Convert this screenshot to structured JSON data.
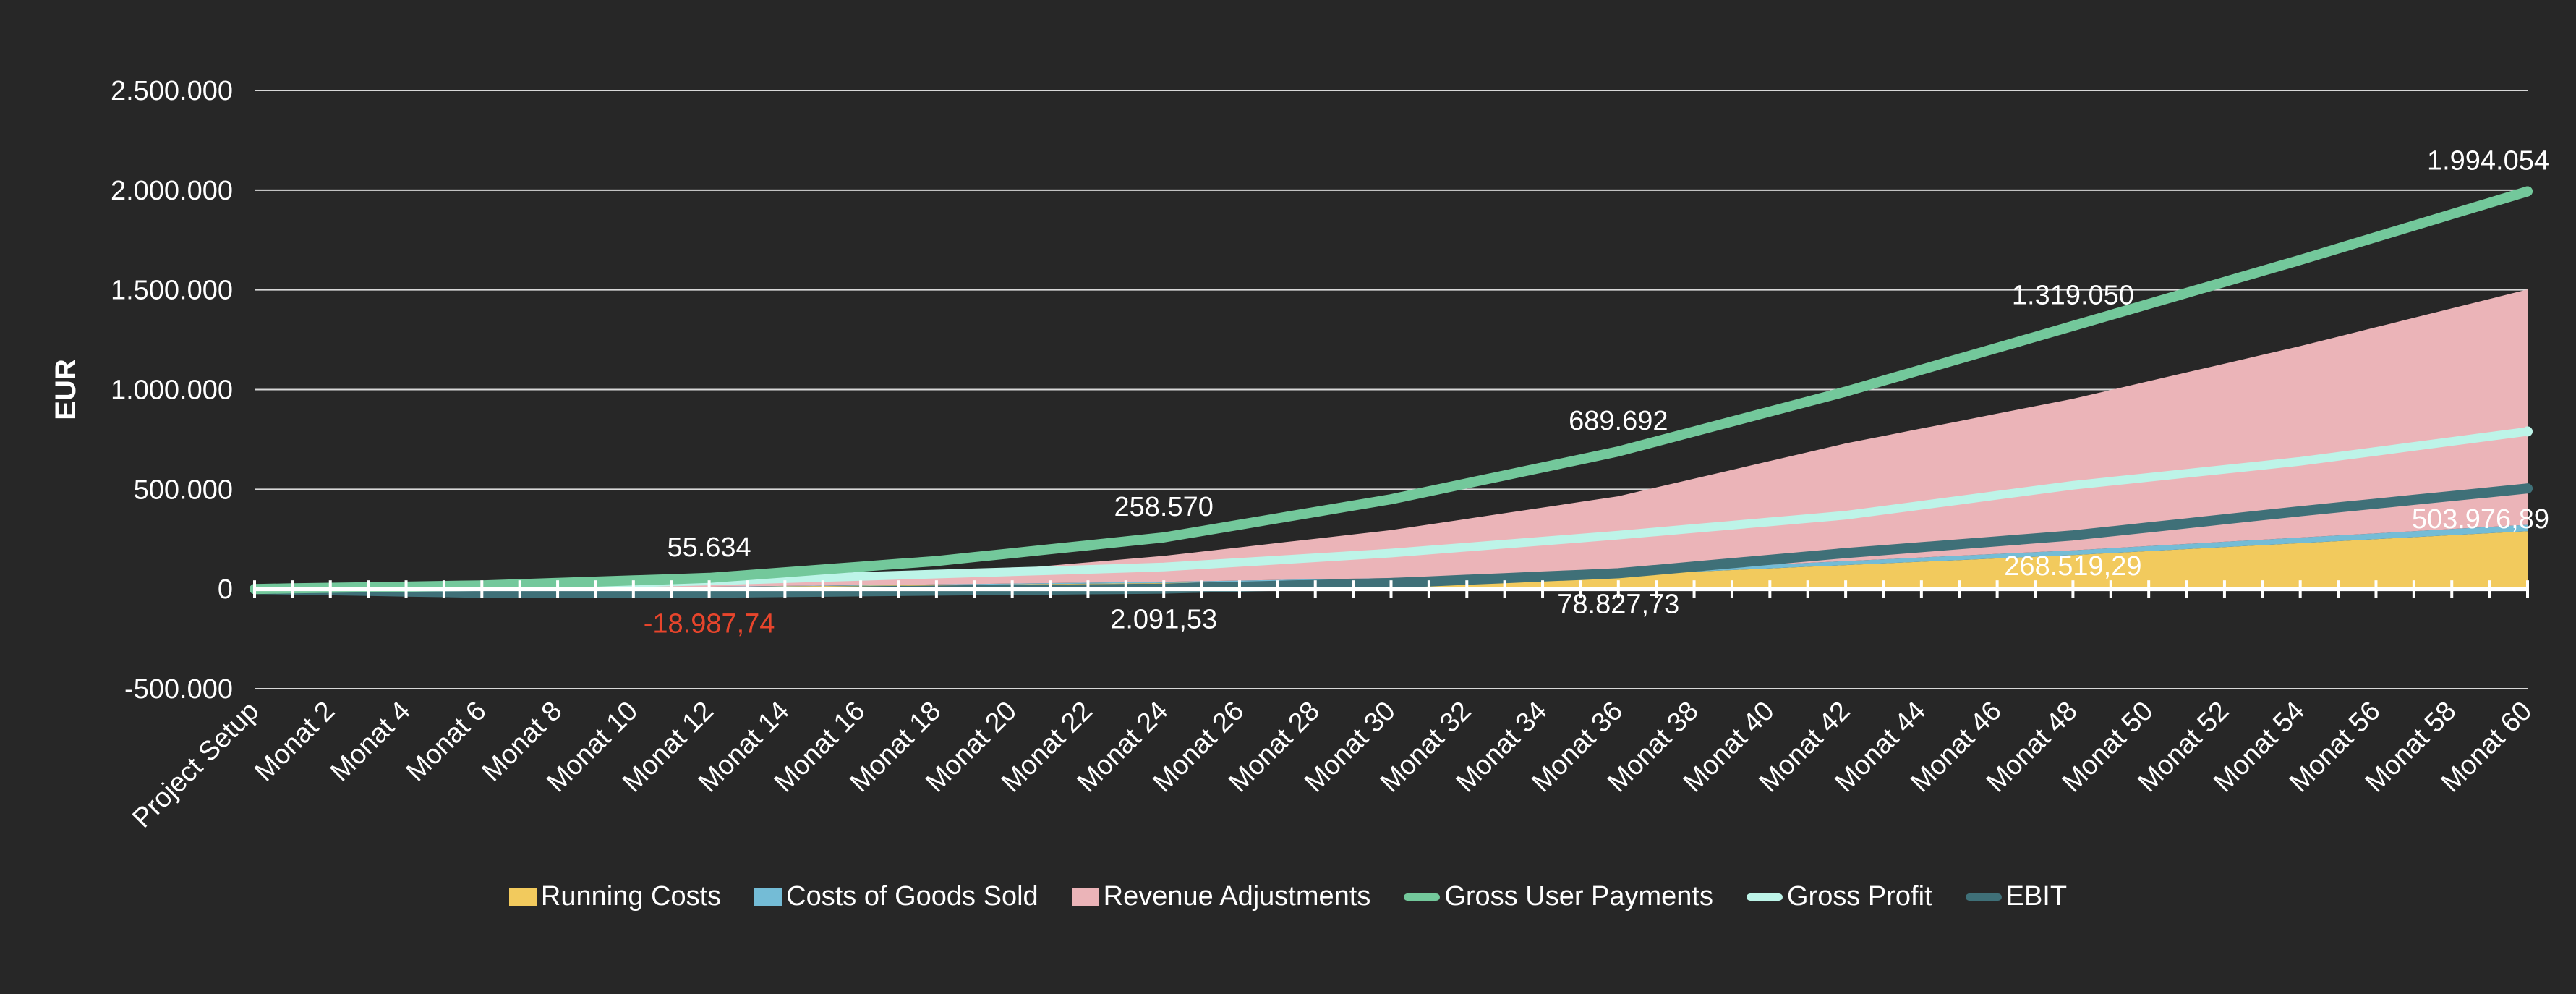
{
  "chart_data": {
    "type": "area",
    "ylabel": "EUR",
    "xlabel": "",
    "ylim": [
      -500000,
      2500000
    ],
    "y_ticks": [
      -500000,
      0,
      500000,
      1000000,
      1500000,
      2000000,
      2500000
    ],
    "y_tick_labels": [
      "-500.000",
      "0",
      "500.000",
      "1.000.000",
      "1.500.000",
      "2.000.000",
      "2.500.000"
    ],
    "grid": true,
    "legend_position": "bottom",
    "x_tick_labels": [
      "Project Setup",
      "Monat 2",
      "Monat 4",
      "Monat 6",
      "Monat 8",
      "Monat 10",
      "Monat 12",
      "Monat 14",
      "Monat 16",
      "Monat 18",
      "Monat 20",
      "Monat 22",
      "Monat 24",
      "Monat 26",
      "Monat 28",
      "Monat 30",
      "Monat 32",
      "Monat 34",
      "Monat 36",
      "Monat 38",
      "Monat 40",
      "Monat 42",
      "Monat 44",
      "Monat 46",
      "Monat 48",
      "Monat 50",
      "Monat 52",
      "Monat 54",
      "Monat 56",
      "Monat 58",
      "Monat 60"
    ],
    "x_tick_indices": [
      0,
      2,
      4,
      6,
      8,
      10,
      12,
      14,
      16,
      18,
      20,
      22,
      24,
      26,
      28,
      30,
      32,
      34,
      36,
      38,
      40,
      42,
      44,
      46,
      48,
      50,
      52,
      54,
      56,
      58,
      60
    ],
    "x_anchor_indices": [
      0,
      6,
      12,
      18,
      24,
      30,
      36,
      42,
      48,
      54,
      60
    ],
    "series": [
      {
        "name": "Running Costs",
        "kind": "area",
        "color": "#f2ca5d",
        "values": [
          0,
          5000,
          10000,
          20000,
          30000,
          45000,
          70000,
          120000,
          170000,
          230000,
          290000
        ]
      },
      {
        "name": "Costs of Goods Sold",
        "kind": "area",
        "color": "#74bcd6",
        "values": [
          0,
          600,
          1500,
          3000,
          6000,
          10000,
          15000,
          20000,
          24000,
          28000,
          32000
        ]
      },
      {
        "name": "Revenue Adjustments",
        "kind": "area",
        "color": "#ebb4b8",
        "values": [
          0,
          6000,
          16000,
          45000,
          130000,
          240000,
          380000,
          590000,
          760000,
          960000,
          1180000
        ]
      },
      {
        "name": "Gross User Payments",
        "kind": "line",
        "color": "#73c89b",
        "values": [
          0,
          18000,
          55634,
          140000,
          258570,
          450000,
          689692,
          990000,
          1319050,
          1650000,
          1994054
        ]
      },
      {
        "name": "Gross Profit",
        "kind": "line",
        "color": "#bdf4e8",
        "values": [
          0,
          12000,
          40000,
          75000,
          110000,
          180000,
          270000,
          370000,
          520000,
          640000,
          790000
        ]
      },
      {
        "name": "EBIT",
        "kind": "line",
        "color": "#3f7078",
        "values": [
          0,
          -19000,
          -18987.74,
          -8000,
          2091.53,
          30000,
          78827.73,
          180000,
          268519.29,
          390000,
          503976.89
        ]
      }
    ],
    "annotations": [
      {
        "series": "Gross User Payments",
        "index": 12,
        "text": "55.634",
        "color": "#ffffff"
      },
      {
        "series": "Gross User Payments",
        "index": 24,
        "text": "258.570",
        "color": "#ffffff"
      },
      {
        "series": "Gross User Payments",
        "index": 36,
        "text": "689.692",
        "color": "#ffffff"
      },
      {
        "series": "Gross User Payments",
        "index": 48,
        "text": "1.319.050",
        "color": "#ffffff"
      },
      {
        "series": "Gross User Payments",
        "index": 60,
        "text": "1.994.054",
        "color": "#ffffff"
      },
      {
        "series": "EBIT",
        "index": 12,
        "text": "-18.987,74",
        "color": "#e8452c"
      },
      {
        "series": "EBIT",
        "index": 24,
        "text": "2.091,53",
        "color": "#ffffff"
      },
      {
        "series": "EBIT",
        "index": 36,
        "text": "78.827,73",
        "color": "#ffffff"
      },
      {
        "series": "EBIT",
        "index": 48,
        "text": "268.519,29",
        "color": "#ffffff"
      },
      {
        "series": "EBIT",
        "index": 60,
        "text": "503.976,89",
        "color": "#ffffff"
      }
    ]
  }
}
